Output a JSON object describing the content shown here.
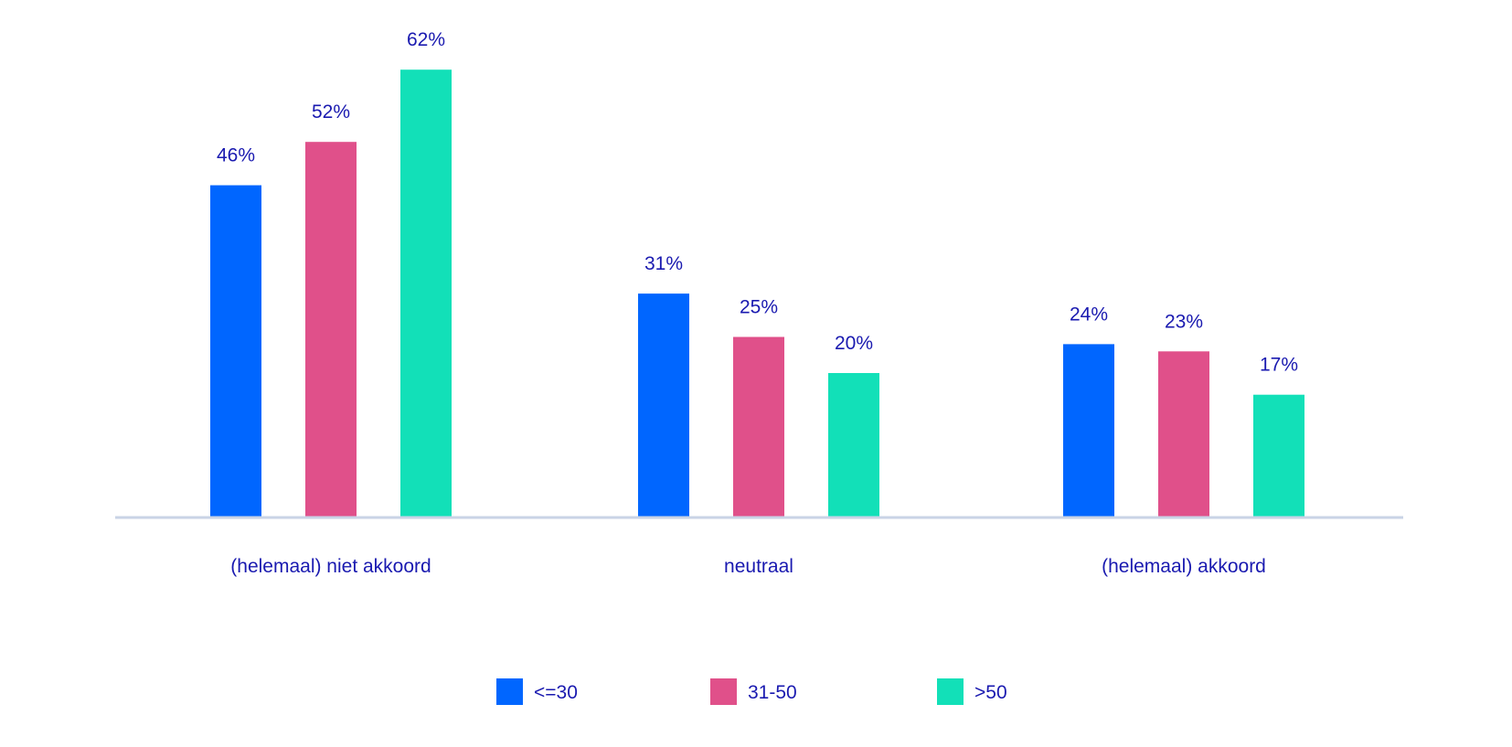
{
  "chart_data": {
    "type": "bar",
    "categories": [
      "(helemaal) niet akkoord",
      "neutraal",
      "(helemaal) akkoord"
    ],
    "series": [
      {
        "name": "<=30",
        "color": "#0066ff",
        "values": [
          46,
          31,
          24
        ],
        "labels": [
          "46%",
          "31%",
          "24%"
        ]
      },
      {
        "name": "31-50",
        "color": "#e0508a",
        "values": [
          52,
          25,
          23
        ],
        "labels": [
          "52%",
          "25%",
          "23%"
        ]
      },
      {
        "name": ">50",
        "color": "#12e0b8",
        "values": [
          62,
          20,
          17
        ],
        "labels": [
          "62%",
          "20%",
          "17%"
        ]
      }
    ],
    "unit": "%",
    "ylim": [
      0,
      62
    ],
    "grid": false,
    "legend_position": "bottom-center",
    "colors": {
      "text": "#1a1ab0",
      "axis": "#c9d3e6"
    }
  }
}
